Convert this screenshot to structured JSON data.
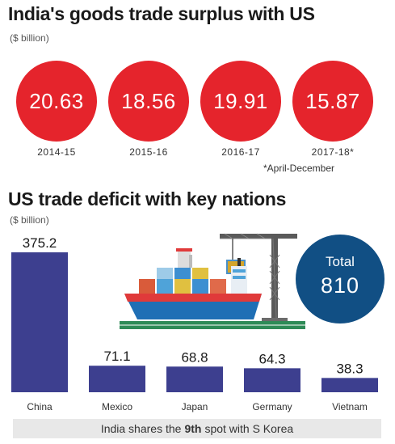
{
  "surplus": {
    "title": "India's goods trade surplus with US",
    "unit": "($ billion)",
    "footnote": "*April-December",
    "items": [
      {
        "period": "2014-15",
        "value": "20.63"
      },
      {
        "period": "2015-16",
        "value": "18.56"
      },
      {
        "period": "2016-17",
        "value": "19.91"
      },
      {
        "period": "2017-18*",
        "value": "15.87"
      }
    ]
  },
  "deficit": {
    "title": "US trade deficit with key nations",
    "unit": "($ billion)",
    "total_label": "Total",
    "total_value": "810",
    "note_before": "India shares the",
    "note_bold": "9th",
    "note_after": "spot with S Korea"
  },
  "colors": {
    "surplus_circle": "#e5242c",
    "bar": "#3d3f8f",
    "total_circle": "#114f84",
    "note_background": "#e8e8e8"
  },
  "icons": [
    "cargo-ship-icon",
    "crane-icon"
  ],
  "chart_data": {
    "type": "bar",
    "categories": [
      "China",
      "Mexico",
      "Japan",
      "Germany",
      "Vietnam"
    ],
    "values": [
      375.2,
      71.1,
      68.8,
      64.3,
      38.3
    ],
    "ylabel": "($ billion)",
    "ylim": [
      0,
      375.2
    ],
    "grid": false,
    "legend": "none"
  }
}
